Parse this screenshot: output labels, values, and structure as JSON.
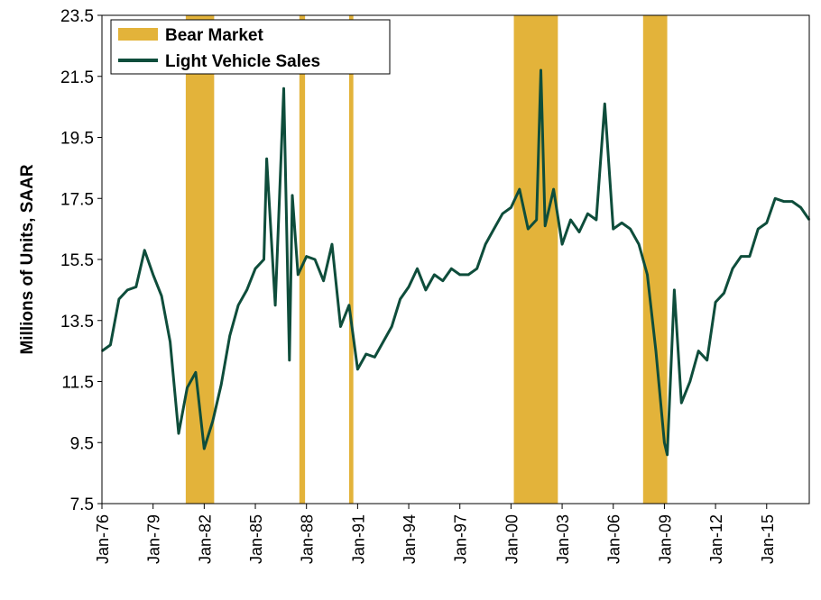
{
  "chart_data": {
    "type": "line",
    "title": "",
    "xlabel": "",
    "ylabel": "Millions of Units, SAAR",
    "ylim": [
      7.5,
      23.5
    ],
    "y_ticks": [
      "7.5",
      "9.5",
      "11.5",
      "13.5",
      "15.5",
      "17.5",
      "19.5",
      "21.5",
      "23.5"
    ],
    "x_tick_labels": [
      "Jan-76",
      "Jan-79",
      "Jan-82",
      "Jan-85",
      "Jan-88",
      "Jan-91",
      "Jan-94",
      "Jan-97",
      "Jan-00",
      "Jan-03",
      "Jan-06",
      "Jan-09",
      "Jan-12",
      "Jan-15"
    ],
    "grid": false,
    "legend_position": "top-left",
    "legend": [
      {
        "label": "Bear Market",
        "kind": "swatch",
        "color": "#E3B33A"
      },
      {
        "label": "Light Vehicle Sales",
        "kind": "line",
        "color": "#0E4D3B"
      }
    ],
    "bear_markets": [
      {
        "start": "Dec-80",
        "end": "Aug-82"
      },
      {
        "start": "Aug-87",
        "end": "Dec-87"
      },
      {
        "start": "Jul-90",
        "end": "Oct-90"
      },
      {
        "start": "Mar-00",
        "end": "Oct-02"
      },
      {
        "start": "Oct-07",
        "end": "Mar-09"
      }
    ],
    "series": [
      {
        "name": "Light Vehicle Sales",
        "color": "#0E4D3B",
        "points": [
          [
            "Jan-76",
            12.5
          ],
          [
            "Jul-76",
            12.7
          ],
          [
            "Jan-77",
            14.2
          ],
          [
            "Jul-77",
            14.5
          ],
          [
            "Jan-78",
            14.6
          ],
          [
            "Jul-78",
            15.8
          ],
          [
            "Jan-79",
            15.0
          ],
          [
            "Jul-79",
            14.3
          ],
          [
            "Jan-80",
            12.8
          ],
          [
            "Jul-80",
            9.8
          ],
          [
            "Jan-81",
            11.3
          ],
          [
            "Jul-81",
            11.8
          ],
          [
            "Jan-82",
            9.3
          ],
          [
            "Jul-82",
            10.2
          ],
          [
            "Jan-83",
            11.4
          ],
          [
            "Jul-83",
            13.0
          ],
          [
            "Jan-84",
            14.0
          ],
          [
            "Jul-84",
            14.5
          ],
          [
            "Jan-85",
            15.2
          ],
          [
            "Jul-85",
            15.5
          ],
          [
            "Sep-85",
            18.8
          ],
          [
            "Mar-86",
            14.0
          ],
          [
            "Jan-86",
            15.6
          ],
          [
            "Sep-86",
            21.1
          ],
          [
            "Jan-87",
            12.2
          ],
          [
            "Mar-87",
            17.6
          ],
          [
            "Jul-87",
            15.0
          ],
          [
            "Jan-88",
            15.6
          ],
          [
            "Jul-88",
            15.5
          ],
          [
            "Jan-89",
            14.8
          ],
          [
            "Jul-89",
            16.0
          ],
          [
            "Jan-90",
            13.3
          ],
          [
            "Jul-90",
            14.0
          ],
          [
            "Jan-91",
            11.9
          ],
          [
            "Jul-91",
            12.4
          ],
          [
            "Jan-92",
            12.3
          ],
          [
            "Jul-92",
            12.8
          ],
          [
            "Jan-93",
            13.3
          ],
          [
            "Jul-93",
            14.2
          ],
          [
            "Jan-94",
            14.6
          ],
          [
            "Jul-94",
            15.2
          ],
          [
            "Jan-95",
            14.5
          ],
          [
            "Jul-95",
            15.0
          ],
          [
            "Jan-96",
            14.8
          ],
          [
            "Jul-96",
            15.2
          ],
          [
            "Jan-97",
            15.0
          ],
          [
            "Jul-97",
            15.0
          ],
          [
            "Jan-98",
            15.2
          ],
          [
            "Jul-98",
            16.0
          ],
          [
            "Jan-99",
            16.5
          ],
          [
            "Jul-99",
            17.0
          ],
          [
            "Jan-00",
            17.2
          ],
          [
            "Jul-00",
            17.8
          ],
          [
            "Jan-01",
            16.5
          ],
          [
            "Jul-01",
            16.8
          ],
          [
            "Oct-01",
            21.7
          ],
          [
            "Jan-02",
            16.6
          ],
          [
            "Jul-02",
            17.8
          ],
          [
            "Jan-03",
            16.0
          ],
          [
            "Jul-03",
            16.8
          ],
          [
            "Jan-04",
            16.4
          ],
          [
            "Jul-04",
            17.0
          ],
          [
            "Jan-05",
            16.8
          ],
          [
            "Jul-05",
            20.6
          ],
          [
            "Jan-06",
            16.5
          ],
          [
            "Jul-06",
            16.7
          ],
          [
            "Jan-07",
            16.5
          ],
          [
            "Jul-07",
            16.0
          ],
          [
            "Jan-08",
            15.0
          ],
          [
            "Jul-08",
            12.5
          ],
          [
            "Jan-09",
            9.5
          ],
          [
            "Mar-09",
            9.1
          ],
          [
            "Aug-09",
            14.5
          ],
          [
            "Jan-10",
            10.8
          ],
          [
            "Jul-10",
            11.5
          ],
          [
            "Jan-11",
            12.5
          ],
          [
            "Jul-11",
            12.2
          ],
          [
            "Jan-12",
            14.1
          ],
          [
            "Jul-12",
            14.4
          ],
          [
            "Jan-13",
            15.2
          ],
          [
            "Jul-13",
            15.6
          ],
          [
            "Jan-14",
            15.6
          ],
          [
            "Jul-14",
            16.5
          ],
          [
            "Jan-15",
            16.7
          ],
          [
            "Jul-15",
            17.5
          ],
          [
            "Jan-16",
            17.4
          ],
          [
            "Jul-16",
            17.4
          ],
          [
            "Jan-17",
            17.2
          ],
          [
            "Jul-17",
            16.8
          ]
        ]
      }
    ]
  }
}
